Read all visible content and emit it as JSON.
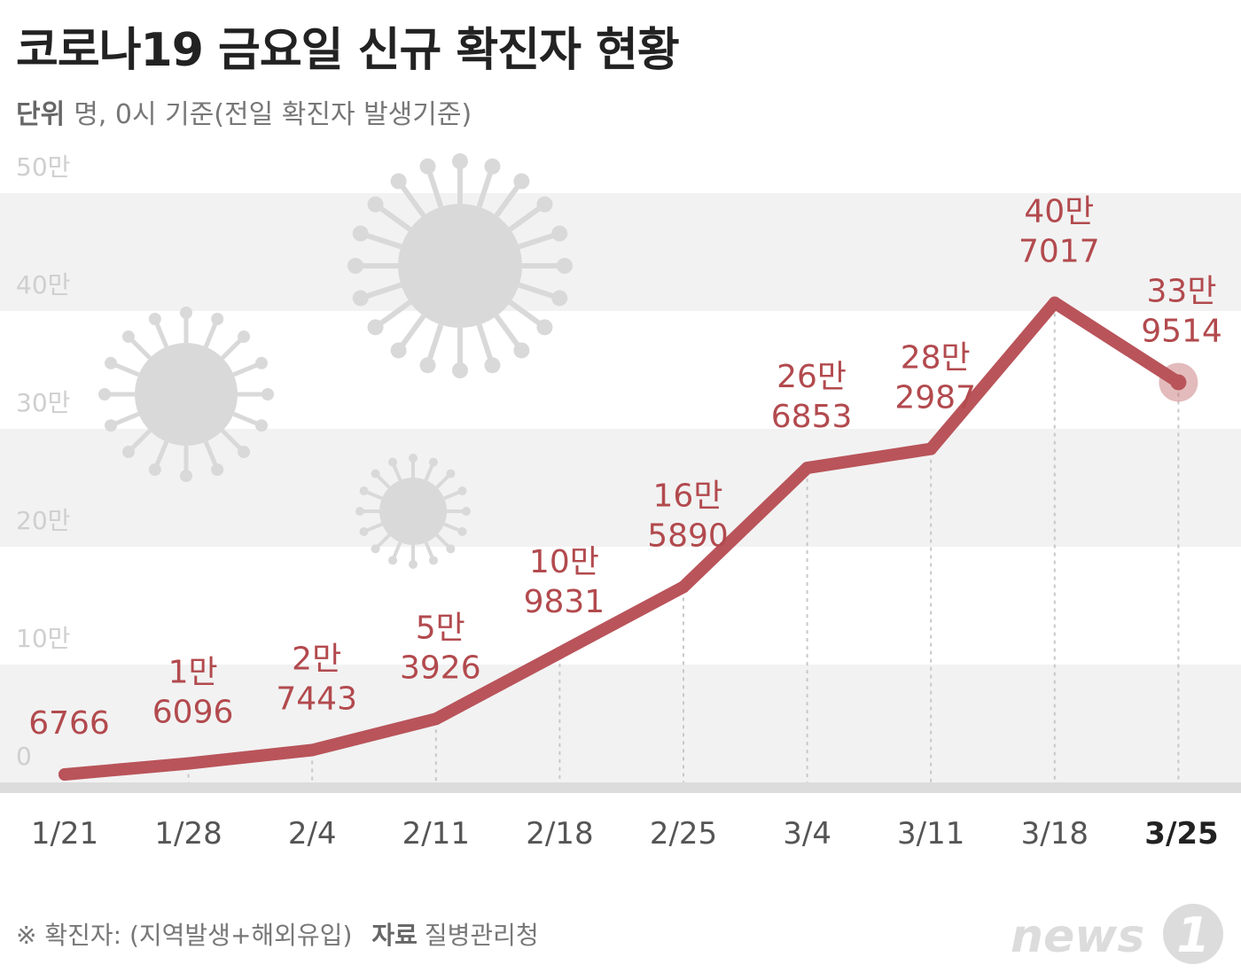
{
  "title": "코로나19 금요일 신규 확진자 현황",
  "unit": {
    "key": "단위",
    "text": "명, 0시 기준(전일 확진자 발생기준)"
  },
  "footer": {
    "note": "※ 확진자: (지역발생+해외유입)",
    "source_key": "자료",
    "source": "질병관리청"
  },
  "logo_text": "news1",
  "colors": {
    "line": "#b9545a",
    "label": "#b24a4e",
    "band": "#f2f2f2",
    "virus": "#d9d9d9"
  },
  "chart_data": {
    "type": "line",
    "categories": [
      "1/21",
      "1/28",
      "2/4",
      "2/11",
      "2/18",
      "2/25",
      "3/4",
      "3/11",
      "3/18",
      "3/25"
    ],
    "values": [
      6766,
      16096,
      27443,
      53926,
      109831,
      165890,
      266853,
      282987,
      407017,
      339514
    ],
    "value_labels": [
      [
        "",
        "6766"
      ],
      [
        "1만",
        "6096"
      ],
      [
        "2만",
        "7443"
      ],
      [
        "5만",
        "3926"
      ],
      [
        "10만",
        "9831"
      ],
      [
        "16만",
        "5890"
      ],
      [
        "26만",
        "6853"
      ],
      [
        "28만",
        "2987"
      ],
      [
        "40만",
        "7017"
      ],
      [
        "33만",
        "9514"
      ]
    ],
    "ylim": [
      0,
      500000
    ],
    "yticks": [
      0,
      100000,
      200000,
      300000,
      400000,
      500000
    ],
    "ytick_labels": [
      "0",
      "10만",
      "20만",
      "30만",
      "40만",
      "50만"
    ],
    "highlight_last": true,
    "grid": "alternating bands"
  }
}
